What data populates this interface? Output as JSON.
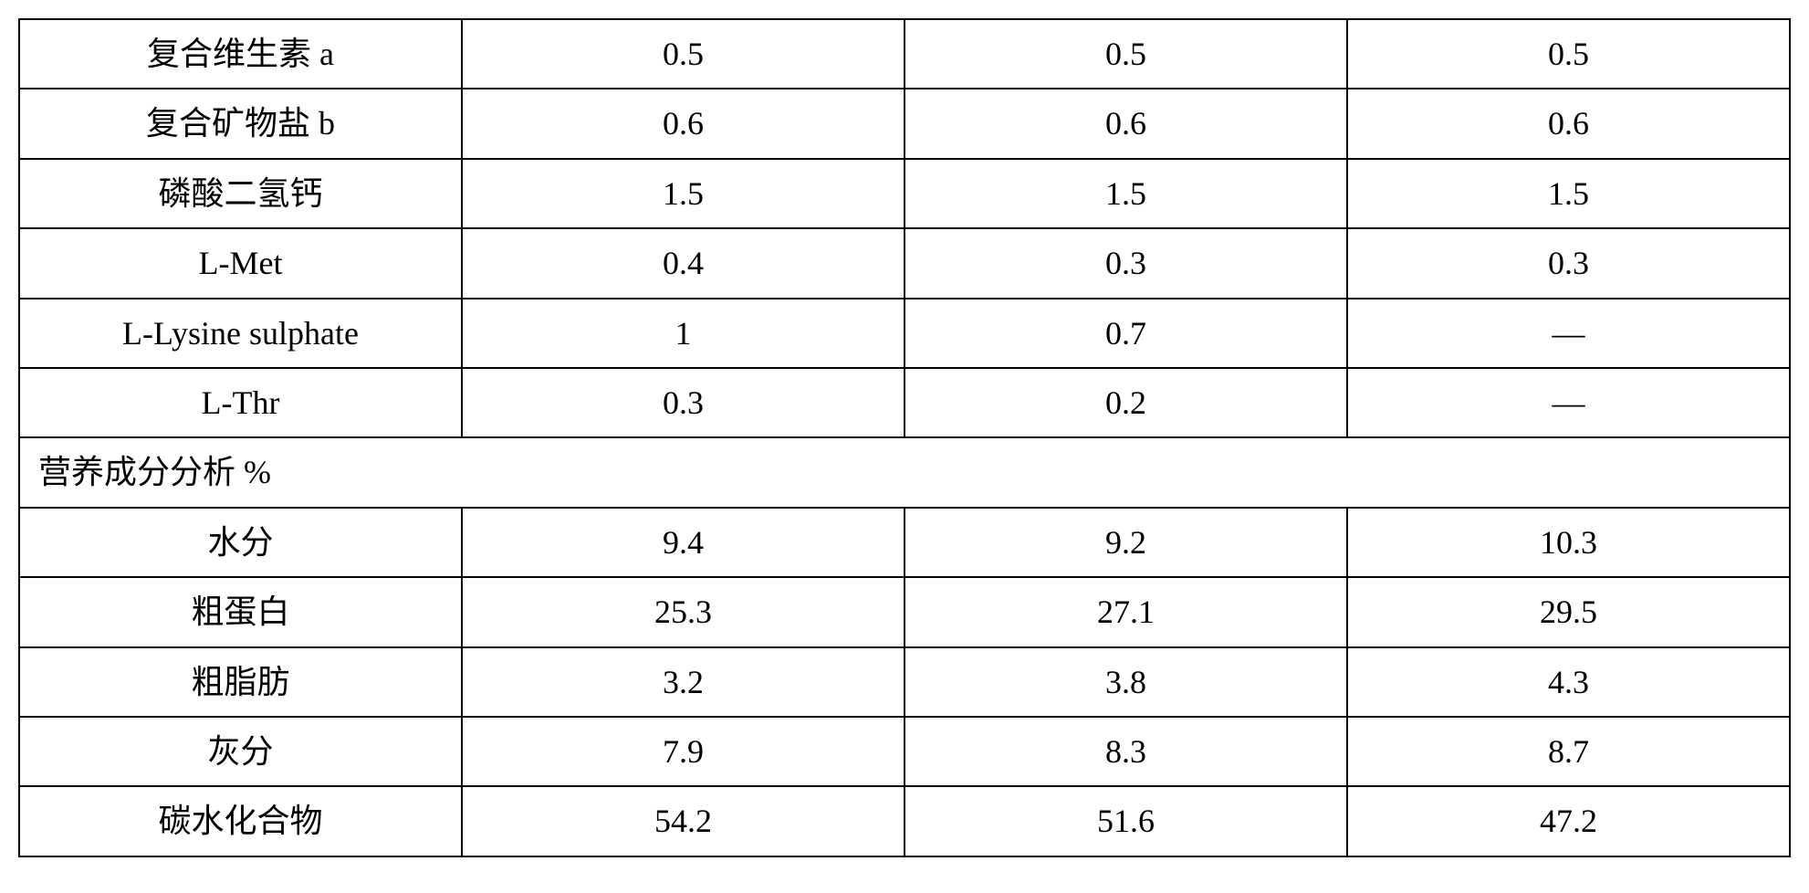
{
  "table": {
    "top_rows": [
      {
        "label": "复合维生素 a",
        "col1": "0.5",
        "col2": "0.5",
        "col3": "0.5"
      },
      {
        "label": "复合矿物盐 b",
        "col1": "0.6",
        "col2": "0.6",
        "col3": "0.6"
      },
      {
        "label": "磷酸二氢钙",
        "col1": "1.5",
        "col2": "1.5",
        "col3": "1.5"
      },
      {
        "label": "L-Met",
        "col1": "0.4",
        "col2": "0.3",
        "col3": "0.3"
      },
      {
        "label": "L-Lysine sulphate",
        "col1": "1",
        "col2": "0.7",
        "col3": "—"
      },
      {
        "label": "L-Thr",
        "col1": "0.3",
        "col2": "0.2",
        "col3": "—"
      }
    ],
    "section_header": "营养成分分析   %",
    "bottom_rows": [
      {
        "label": "水分",
        "col1": "9.4",
        "col2": "9.2",
        "col3": "10.3"
      },
      {
        "label": "粗蛋白",
        "col1": "25.3",
        "col2": "27.1",
        "col3": "29.5"
      },
      {
        "label": "粗脂肪",
        "col1": "3.2",
        "col2": "3.8",
        "col3": "4.3"
      },
      {
        "label": "灰分",
        "col1": "7.9",
        "col2": "8.3",
        "col3": "8.7"
      },
      {
        "label": "碳水化合物",
        "col1": "54.2",
        "col2": "51.6",
        "col3": "47.2"
      }
    ],
    "styling": {
      "border_color": "#000000",
      "border_width": 2,
      "background_color": "#ffffff",
      "text_color": "#000000",
      "font_size": 36,
      "font_family": "Times New Roman, SimSun, serif",
      "column_widths": [
        "25%",
        "25%",
        "25%",
        "25%"
      ]
    }
  }
}
